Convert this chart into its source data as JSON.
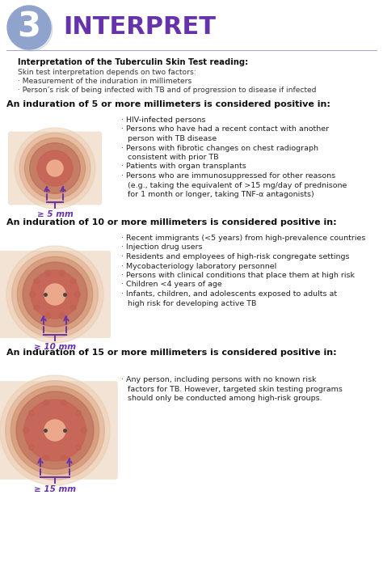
{
  "title": "INTERPRET",
  "circle_number": "3",
  "circle_color": "#8fa3cc",
  "title_color": "#6633aa",
  "line_color": "#aaaacc",
  "bg_color": "#ffffff",
  "header_bold": "Interpretation of the Tuberculin Skin Test reading:",
  "intro_lines": [
    "Skin test interpretation depends on two factors:",
    "· Measurement of the induration in millimeters",
    "· Person’s risk of being infected with TB and of progression to disease if infected"
  ],
  "section1_heading": "An induration of 5 or more millimeters is considered positive in:",
  "section1_bullets": [
    "· HIV-infected persons",
    "· Persons who have had a recent contact with another\n   person with TB disease",
    "· Persons with fibrotic changes on chest radiograph\n   consistent with prior TB",
    "· Patients with organ transplants",
    "· Persons who are immunosuppressed for other reasons\n   (e.g., taking the equivalent of >15 mg/day of prednisone\n   for 1 month or longer, taking TNF-α antagonists)"
  ],
  "section1_label": "≥ 5 mm",
  "section2_heading": "An induration of 10 or more millimeters is considered positive in:",
  "section2_bullets": [
    "· Recent immigrants (<5 years) from high-prevalence countries",
    "· Injection drug users",
    "· Residents and employees of high-risk congregate settings",
    "· Mycobacteriology laboratory personnel",
    "· Persons with clinical conditions that place them at high risk",
    "· Children <4 years of age",
    "· Infants, children, and adolescents exposed to adults at\n   high risk for developing active TB"
  ],
  "section2_label": "≥ 10 mm",
  "section3_heading": "An induration of 15 or more millimeters is considered positive in:",
  "section3_bullets": [
    "· Any person, including persons with no known risk\n   factors for TB. However, targeted skin testing programs\n   should only be conducted among high-risk groups."
  ],
  "section3_label": "≥ 15 mm",
  "arrow_color": "#6633aa",
  "heading_color": "#111111",
  "bullet_color": "#222222"
}
